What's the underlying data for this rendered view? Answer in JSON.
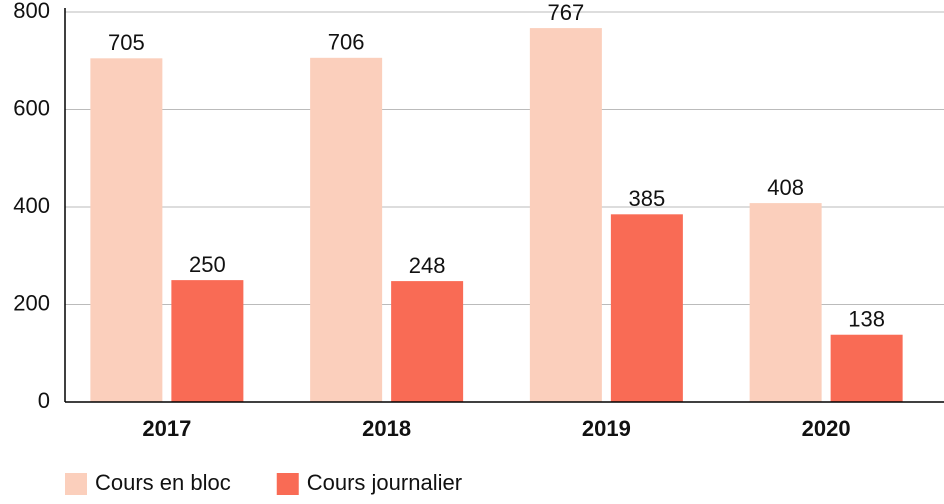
{
  "chart_data": {
    "type": "bar",
    "categories": [
      "2017",
      "2018",
      "2019",
      "2020"
    ],
    "series": [
      {
        "name": "Cours en bloc",
        "color": "#fbcfbc",
        "values": [
          705,
          706,
          767,
          408
        ]
      },
      {
        "name": "Cours journalier",
        "color": "#f96b55",
        "values": [
          250,
          248,
          385,
          138
        ]
      }
    ],
    "ylim": [
      0,
      800
    ],
    "yticks": [
      0,
      200,
      400,
      600,
      800
    ],
    "grid": true
  }
}
